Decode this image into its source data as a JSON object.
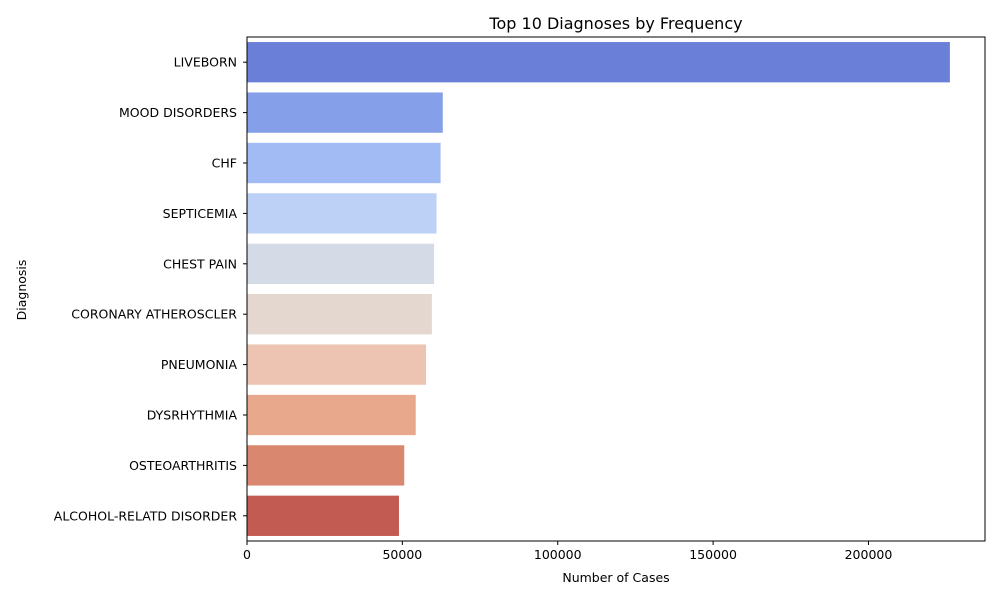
{
  "chart_data": {
    "type": "bar",
    "orientation": "horizontal",
    "title": "Top 10 Diagnoses by Frequency",
    "xlabel": "Number of Cases",
    "ylabel": "Diagnosis",
    "categories": [
      "LIVEBORN",
      "MOOD DISORDERS",
      "CHF",
      "SEPTICEMIA",
      "CHEST PAIN",
      "CORONARY ATHEROSCLER",
      "PNEUMONIA",
      "DYSRHYTHMIA",
      "OSTEOARTHRITIS",
      "ALCOHOL-RELATD DISORDER"
    ],
    "values": [
      226200,
      63000,
      62300,
      61000,
      60200,
      59500,
      57600,
      54300,
      50600,
      48900
    ],
    "colors": [
      "#6a80d8",
      "#85a0e8",
      "#a2bbf4",
      "#bdd0f5",
      "#d4dae6",
      "#e4d7cf",
      "#edc4b1",
      "#e8a88c",
      "#da8770",
      "#c25b52"
    ],
    "xlim": [
      0,
      237500
    ],
    "xticks": [
      0,
      50000,
      100000,
      150000,
      200000
    ],
    "xtick_labels": [
      "0",
      "50000",
      "100000",
      "150000",
      "200000"
    ],
    "grid": false,
    "legend": false
  }
}
